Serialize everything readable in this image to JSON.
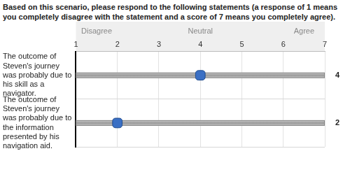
{
  "chart_data": {
    "type": "scatter",
    "title": "Based on this scenario, please respond to the following statements (a response of 1 means you completely disagree with the statement and a score of 7 means you completely agree).",
    "categories": [
      "The outcome of Steven's journey was probably due to his skill as a navigator.",
      "The outcome of Steven's journey was probably due to the information presented by his navigation aid."
    ],
    "values": [
      4,
      2
    ],
    "color": "#3a6fc4",
    "marker": "rectRounded",
    "orientation": "horizontal",
    "xlim": [
      1,
      7
    ],
    "xticks": [
      1,
      2,
      3,
      4,
      5,
      6,
      7
    ],
    "grid": true,
    "data_labels": true,
    "annotations": [
      {
        "x": 1.5,
        "text": "Disagree"
      },
      {
        "x": 4,
        "text": "Neutral"
      },
      {
        "x": 6.5,
        "text": "Agree"
      }
    ]
  }
}
